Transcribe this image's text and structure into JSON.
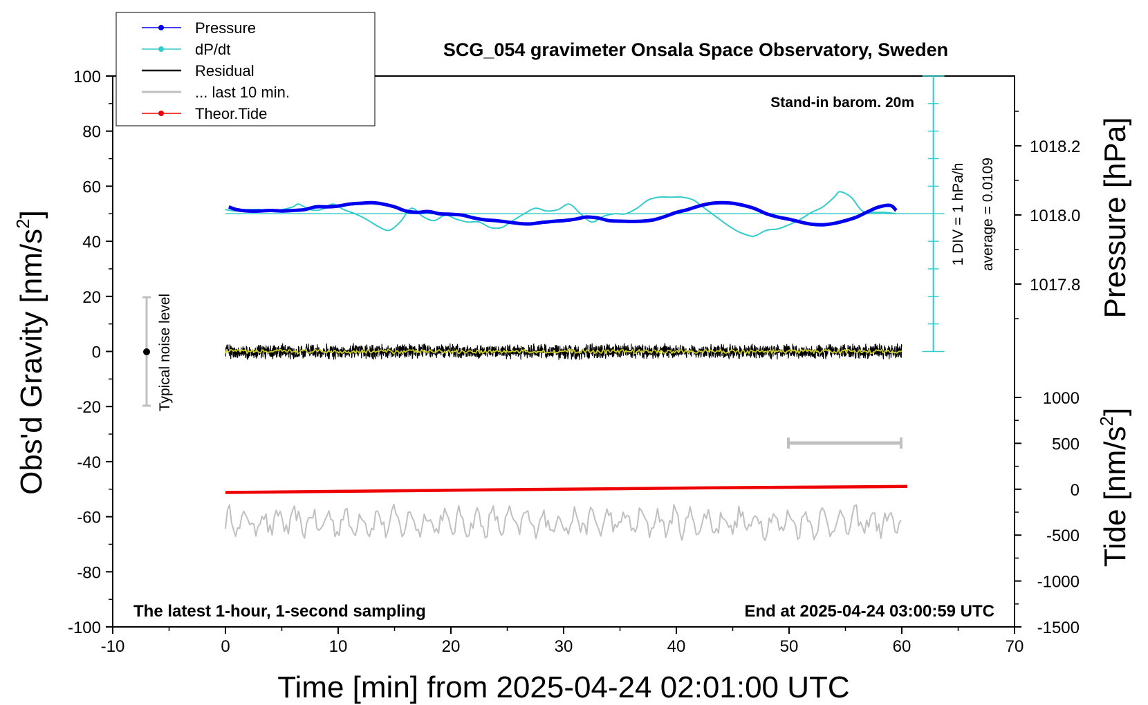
{
  "chart_data": {
    "type": "line",
    "title": "SCG_054 gravimeter Onsala Space Observatory, Sweden",
    "xlabel": "Time [min] from 2025-04-24 02:01:00 UTC",
    "ylabel_left_main": "Obs'd Gravity [nm/s",
    "ylabel_left_sup": "2",
    "ylabel_left_end": "]",
    "ylabel_right_pressure": "Pressure [hPa]",
    "ylabel_right_tide_main": "Tide [nm/s",
    "ylabel_right_tide_sup": "2",
    "ylabel_right_tide_end": "]",
    "xlim": [
      -10,
      70
    ],
    "ylim": [
      -100,
      100
    ],
    "x_ticks": [
      "-10",
      "0",
      "10",
      "20",
      "30",
      "40",
      "50",
      "60",
      "70"
    ],
    "y_ticks": [
      "-100",
      "-80",
      "-60",
      "-40",
      "-20",
      "0",
      "20",
      "40",
      "60",
      "80",
      "100"
    ],
    "pressure_ticks": [
      "1017.8",
      "1018.0",
      "1018.2"
    ],
    "tide_ticks": [
      "-1500",
      "-1000",
      "-500",
      "0",
      "500",
      "1000"
    ],
    "annotations": {
      "barometer": "Stand-in barom. 20m",
      "div": "1 DIV = 1 hPa/h",
      "average": "average = 0.0109",
      "noise": "Typical noise level",
      "latest": "The latest 1-hour, 1-second sampling",
      "end": "End at 2025-04-24 03:00:59 UTC"
    },
    "legend_position": "top-left",
    "legend": [
      {
        "name": "Pressure",
        "color": "#0000ee",
        "marker": true
      },
      {
        "name": "dP/dt",
        "color": "#33cccc",
        "marker": true
      },
      {
        "name": "Residual",
        "color": "#000000",
        "marker": false
      },
      {
        "name": "... last 10 min.",
        "color": "#c0c0c0",
        "marker": false
      },
      {
        "name": "Theor.Tide",
        "color": "#ee0000",
        "marker": true
      }
    ],
    "series": [
      {
        "name": "Pressure",
        "color": "#0000ee",
        "x": [
          0.3,
          1,
          2,
          3,
          4,
          5,
          6,
          7,
          8,
          9,
          10,
          11,
          12,
          13,
          14,
          15,
          16,
          17,
          18,
          19,
          20,
          21,
          22,
          23,
          24,
          25,
          26,
          27,
          28,
          29,
          30,
          31,
          32,
          33,
          34,
          35,
          36,
          37,
          38,
          39,
          40,
          41,
          42,
          43,
          44,
          45,
          46,
          47,
          48,
          49,
          50,
          51,
          52,
          53,
          54,
          55,
          56,
          57,
          58,
          59,
          59.5
        ],
        "y": [
          52.5,
          51.5,
          51,
          51,
          51.2,
          51,
          51.2,
          51.5,
          52.5,
          52.5,
          52.8,
          53.5,
          53.8,
          54,
          53.5,
          52.5,
          51,
          50.5,
          50.8,
          50,
          49.8,
          49.5,
          48.5,
          47.8,
          47.5,
          47,
          46.5,
          46.3,
          46.8,
          47.2,
          47.5,
          48,
          48.8,
          48.5,
          47.5,
          47.3,
          47.2,
          47.3,
          47.8,
          49,
          50.5,
          51.5,
          52.8,
          53.7,
          54,
          53.8,
          53,
          51.8,
          50,
          48.8,
          48,
          47,
          46.2,
          46,
          46.5,
          47.5,
          48.8,
          50.8,
          52.5,
          53,
          51.2
        ]
      },
      {
        "name": "dP/dt",
        "color": "#33cccc",
        "x": [
          0,
          1,
          2,
          3,
          4,
          5,
          6,
          6.5,
          7.5,
          8.5,
          9.5,
          10.5,
          11.5,
          12.5,
          13.5,
          14.5,
          15.5,
          16.5,
          17.5,
          18.5,
          19.5,
          20.5,
          21.5,
          22.5,
          23.5,
          24.5,
          25.5,
          26.5,
          27.5,
          28.5,
          29.5,
          30.5,
          31.5,
          32.5,
          33.5,
          34.5,
          35.5,
          36.5,
          37.5,
          38.5,
          39.5,
          40.5,
          41.5,
          42.5,
          43.5,
          44.5,
          45.5,
          46.5,
          47,
          48,
          49,
          50,
          51,
          52,
          53,
          54,
          54.5,
          55.5,
          56.5,
          57.5,
          58.5,
          59.5
        ],
        "y": [
          51.5,
          51,
          51.5,
          51.5,
          51,
          51.5,
          52.5,
          53.5,
          51.5,
          51.5,
          53.5,
          51.5,
          50,
          48,
          45.5,
          44,
          47,
          52,
          49,
          47.5,
          49.5,
          48,
          47,
          47,
          45,
          45,
          47.5,
          50,
          52,
          51,
          51.5,
          53.5,
          50,
          47,
          49,
          50,
          50,
          52,
          55,
          56,
          56,
          56,
          55,
          52,
          49,
          46,
          43.5,
          42,
          42,
          44,
          44.5,
          46,
          48,
          50.5,
          52.5,
          56,
          58,
          56,
          51,
          50.5,
          50.5,
          50
        ]
      },
      {
        "name": "Residual",
        "color": "#000000",
        "x_range": [
          0,
          60
        ],
        "center": 0,
        "amplitude": 2.5
      },
      {
        "name": "... last 10 min.",
        "color": "#c0c0c0",
        "x_range": [
          0,
          60
        ],
        "center": -62,
        "amplitude": 3
      },
      {
        "name": "Theor.Tide",
        "color": "#ee0000",
        "x": [
          0,
          10,
          20,
          30,
          40,
          50,
          60.5
        ],
        "y": [
          -51.2,
          -50.8,
          -50.4,
          -50,
          -49.6,
          -49.3,
          -49
        ]
      }
    ]
  }
}
